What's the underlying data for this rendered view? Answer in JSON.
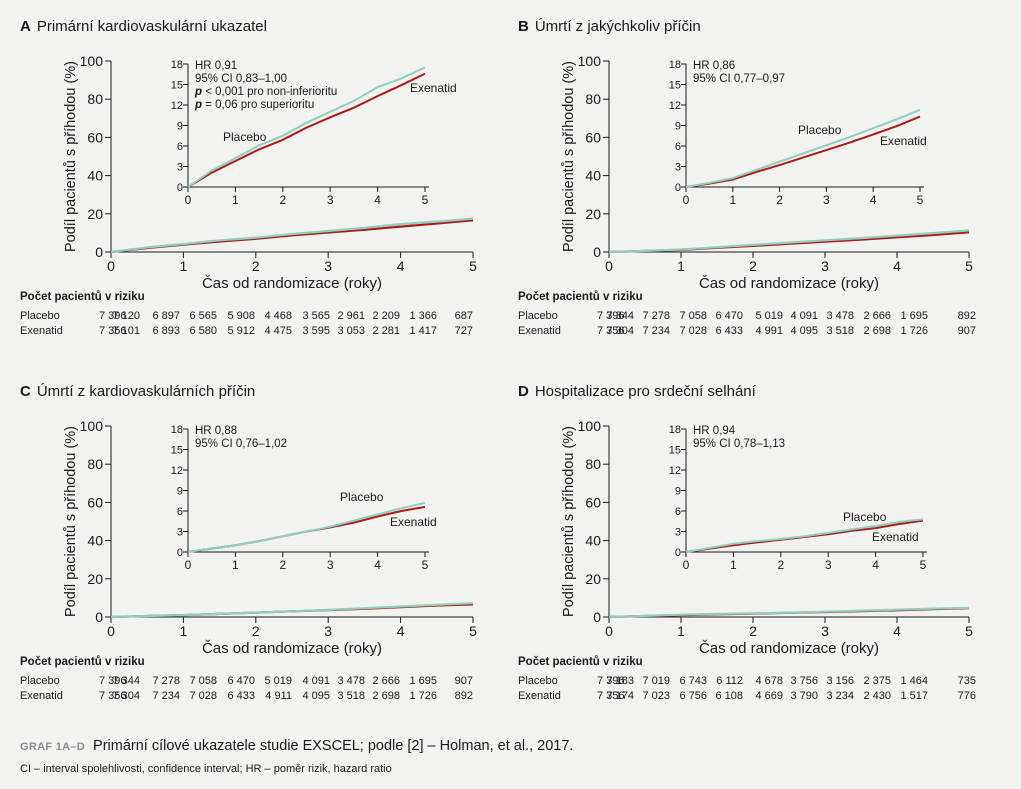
{
  "colors": {
    "placebo": "#8fcfc0",
    "exenatid": "#b01a14",
    "axis": "#1a1a1a",
    "background": "#f2f2f1"
  },
  "caption": {
    "tag": "GRAF 1A–D",
    "text": "Primární cílové ukazatele studie EXSCEL; podle [2] – Holman, et al., 2017.",
    "footnote": "CI – interval spolehlivosti, confidence interval; HR – poměr rizik, hazard ratio"
  },
  "chart_data": [
    {
      "type": "line",
      "letter": "A",
      "title": "Primární kardiovaskulární ukazatel",
      "xlabel": "Čas od randomizace (roky)",
      "ylabel": "Podíl pacientů s příhodou (%)",
      "xlim": [
        0,
        5
      ],
      "ylim": [
        0,
        100
      ],
      "xticks": [
        "0",
        "1",
        "2",
        "3",
        "4",
        "5"
      ],
      "yticks": [
        "0",
        "20",
        "40",
        "60",
        "80",
        "100"
      ],
      "series": [
        {
          "name": "Placebo",
          "x": [
            0,
            0.5,
            1,
            1.5,
            2,
            2.5,
            3,
            3.5,
            4,
            4.5,
            5
          ],
          "y": [
            0,
            2.4,
            4.2,
            6.1,
            7.5,
            9.4,
            11,
            12.6,
            14.6,
            15.9,
            17.5
          ]
        },
        {
          "name": "Exenatid",
          "x": [
            0,
            0.5,
            1,
            1.5,
            2,
            2.5,
            3,
            3.5,
            4,
            4.5,
            5
          ],
          "y": [
            0,
            2.1,
            3.8,
            5.5,
            6.9,
            8.7,
            10.2,
            11.6,
            13.3,
            14.9,
            16.6
          ]
        }
      ],
      "inset": {
        "xlim": [
          0,
          5
        ],
        "ylim": [
          0,
          18
        ],
        "xticks": [
          "0",
          "1",
          "2",
          "3",
          "4",
          "5"
        ],
        "yticks": [
          "0",
          "3",
          "6",
          "9",
          "12",
          "15",
          "18"
        ],
        "annotations": [
          {
            "text": "HR 0,91"
          },
          {
            "text": "95% CI 0,83–1,00"
          },
          {
            "bold": "p",
            "text": " < 0,001 pro non-inferioritu"
          },
          {
            "bold": "p",
            "text": " = 0,06 pro superioritu"
          }
        ],
        "series": [
          {
            "name": "Placebo",
            "x": [
              0,
              0.5,
              1,
              1.5,
              2,
              2.5,
              3,
              3.5,
              4,
              4.5,
              5
            ],
            "y": [
              0,
              2.4,
              4.2,
              6.1,
              7.5,
              9.4,
              11,
              12.6,
              14.6,
              15.9,
              17.5
            ]
          },
          {
            "name": "Exenatid",
            "x": [
              0,
              0.5,
              1,
              1.5,
              2,
              2.5,
              3,
              3.5,
              4,
              4.5,
              5
            ],
            "y": [
              0,
              2.1,
              3.8,
              5.5,
              6.9,
              8.7,
              10.2,
              11.6,
              13.3,
              14.9,
              16.6
            ]
          }
        ]
      },
      "risk_table": {
        "title": "Počet pacientů v riziku",
        "rows": [
          {
            "label": "Placebo",
            "values": [
              "7 396",
              "7 120",
              "6 897",
              "6 565",
              "5 908",
              "4 468",
              "3 565",
              "2 961",
              "2 209",
              "1 366",
              "687"
            ]
          },
          {
            "label": "Exenatid",
            "values": [
              "7 356",
              "7 101",
              "6 893",
              "6 580",
              "5 912",
              "4 475",
              "3 595",
              "3 053",
              "2 281",
              "1 417",
              "727"
            ]
          }
        ]
      }
    },
    {
      "type": "line",
      "letter": "B",
      "title": "Úmrtí z jakýchkoliv příčin",
      "xlabel": "Čas od randomizace (roky)",
      "ylabel": "Podíl pacientů s příhodou (%)",
      "xlim": [
        0,
        5
      ],
      "ylim": [
        0,
        100
      ],
      "xticks": [
        "0",
        "1",
        "2",
        "3",
        "4",
        "5"
      ],
      "yticks": [
        "0",
        "20",
        "40",
        "60",
        "80",
        "100"
      ],
      "series": [
        {
          "name": "Placebo",
          "x": [
            0,
            0.5,
            1,
            1.5,
            2,
            2.5,
            3,
            3.5,
            4,
            4.5,
            5
          ],
          "y": [
            0,
            0.6,
            1.3,
            2.5,
            3.7,
            4.9,
            6.1,
            7.3,
            8.6,
            9.9,
            11.3
          ]
        },
        {
          "name": "Exenatid",
          "x": [
            0,
            0.5,
            1,
            1.5,
            2,
            2.5,
            3,
            3.5,
            4,
            4.5,
            5
          ],
          "y": [
            0,
            0.5,
            1.1,
            2.2,
            3.2,
            4.3,
            5.4,
            6.5,
            7.7,
            8.9,
            10.3
          ]
        }
      ],
      "inset": {
        "xlim": [
          0,
          5
        ],
        "ylim": [
          0,
          18
        ],
        "xticks": [
          "0",
          "1",
          "2",
          "3",
          "4",
          "5"
        ],
        "yticks": [
          "0",
          "3",
          "6",
          "9",
          "12",
          "15",
          "18"
        ],
        "annotations": [
          {
            "text": "HR 0,86"
          },
          {
            "text": "95% CI 0,77–0,97"
          }
        ],
        "series": [
          {
            "name": "Placebo",
            "x": [
              0,
              0.5,
              1,
              1.5,
              2,
              2.5,
              3,
              3.5,
              4,
              4.5,
              5
            ],
            "y": [
              0,
              0.6,
              1.3,
              2.5,
              3.7,
              4.9,
              6.1,
              7.3,
              8.6,
              9.9,
              11.3
            ]
          },
          {
            "name": "Exenatid",
            "x": [
              0,
              0.5,
              1,
              1.5,
              2,
              2.5,
              3,
              3.5,
              4,
              4.5,
              5
            ],
            "y": [
              0,
              0.5,
              1.1,
              2.2,
              3.2,
              4.3,
              5.4,
              6.5,
              7.7,
              8.9,
              10.3
            ]
          }
        ]
      },
      "risk_table": {
        "title": "Počet pacientů v riziku",
        "rows": [
          {
            "label": "Placebo",
            "values": [
              "7 396",
              "7 344",
              "7 278",
              "7 058",
              "6 470",
              "5 019",
              "4 091",
              "3 478",
              "2 666",
              "1 695",
              "892"
            ]
          },
          {
            "label": "Exenatid",
            "values": [
              "7 356",
              "7 304",
              "7 234",
              "7 028",
              "6 433",
              "4 991",
              "4 095",
              "3 518",
              "2 698",
              "1 726",
              "907"
            ]
          }
        ]
      }
    },
    {
      "type": "line",
      "letter": "C",
      "title": "Úmrtí z kardiovaskulárních příčin",
      "xlabel": "Čas od randomizace (roky)",
      "ylabel": "Podíl pacientů s příhodou (%)",
      "xlim": [
        0,
        5
      ],
      "ylim": [
        0,
        100
      ],
      "xticks": [
        "0",
        "1",
        "2",
        "3",
        "4",
        "5"
      ],
      "yticks": [
        "0",
        "20",
        "40",
        "60",
        "80",
        "100"
      ],
      "series": [
        {
          "name": "Placebo",
          "x": [
            0,
            0.5,
            1,
            1.5,
            2,
            2.5,
            3,
            3.5,
            4,
            4.5,
            5
          ],
          "y": [
            0,
            0.5,
            1.0,
            1.6,
            2.3,
            3.0,
            3.7,
            4.6,
            5.5,
            6.4,
            7.2
          ]
        },
        {
          "name": "Exenatid",
          "x": [
            0,
            0.5,
            1,
            1.5,
            2,
            2.5,
            3,
            3.5,
            4,
            4.5,
            5
          ],
          "y": [
            0,
            0.5,
            1.0,
            1.6,
            2.3,
            3.0,
            3.6,
            4.3,
            5.2,
            6.0,
            6.6
          ]
        }
      ],
      "inset": {
        "xlim": [
          0,
          5
        ],
        "ylim": [
          0,
          18
        ],
        "xticks": [
          "0",
          "1",
          "2",
          "3",
          "4",
          "5"
        ],
        "yticks": [
          "0",
          "3",
          "6",
          "9",
          "12",
          "15",
          "18"
        ],
        "annotations": [
          {
            "text": "HR 0,88"
          },
          {
            "text": "95% CI 0,76–1,02"
          }
        ],
        "series": [
          {
            "name": "Placebo",
            "x": [
              0,
              0.5,
              1,
              1.5,
              2,
              2.5,
              3,
              3.5,
              4,
              4.5,
              5
            ],
            "y": [
              0,
              0.5,
              1.0,
              1.6,
              2.3,
              3.0,
              3.7,
              4.6,
              5.5,
              6.4,
              7.2
            ]
          },
          {
            "name": "Exenatid",
            "x": [
              0,
              0.5,
              1,
              1.5,
              2,
              2.5,
              3,
              3.5,
              4,
              4.5,
              5
            ],
            "y": [
              0,
              0.5,
              1.0,
              1.6,
              2.3,
              3.0,
              3.6,
              4.3,
              5.2,
              6.0,
              6.6
            ]
          }
        ]
      },
      "risk_table": {
        "title": "Počet pacientů v riziku",
        "rows": [
          {
            "label": "Placebo",
            "values": [
              "7 396",
              "7 344",
              "7 278",
              "7 058",
              "6 470",
              "5 019",
              "4 091",
              "3 478",
              "2 666",
              "1 695",
              "907"
            ]
          },
          {
            "label": "Exenatid",
            "values": [
              "7 356",
              "7 304",
              "7 234",
              "7 028",
              "6 433",
              "4 911",
              "4 095",
              "3 518",
              "2 698",
              "1 726",
              "892"
            ]
          }
        ]
      }
    },
    {
      "type": "line",
      "letter": "D",
      "title": "Hospitalizace pro srdeční selhání",
      "xlabel": "Čas od randomizace (roky)",
      "ylabel": "Podíl pacientů s příhodou (%)",
      "xlim": [
        0,
        5
      ],
      "ylim": [
        0,
        100
      ],
      "xticks": [
        "0",
        "1",
        "2",
        "3",
        "4",
        "5"
      ],
      "yticks": [
        "0",
        "20",
        "40",
        "60",
        "80",
        "100"
      ],
      "series": [
        {
          "name": "Placebo",
          "x": [
            0,
            0.5,
            1,
            1.5,
            2,
            2.5,
            3,
            3.5,
            4,
            4.5,
            5
          ],
          "y": [
            0,
            0.6,
            1.2,
            1.6,
            1.9,
            2.3,
            2.8,
            3.3,
            3.8,
            4.4,
            4.8
          ]
        },
        {
          "name": "Exenatid",
          "x": [
            0,
            0.5,
            1,
            1.5,
            2,
            2.5,
            3,
            3.5,
            4,
            4.5,
            5
          ],
          "y": [
            0,
            0.5,
            1.0,
            1.4,
            1.8,
            2.2,
            2.6,
            3.1,
            3.5,
            4.1,
            4.6
          ]
        }
      ],
      "inset": {
        "xlim": [
          0,
          5
        ],
        "ylim": [
          0,
          18
        ],
        "xticks": [
          "0",
          "1",
          "2",
          "3",
          "4",
          "5"
        ],
        "yticks": [
          "0",
          "3",
          "6",
          "9",
          "12",
          "15",
          "18"
        ],
        "annotations": [
          {
            "text": "HR 0,94"
          },
          {
            "text": "95% CI 0,78–1,13"
          }
        ],
        "series": [
          {
            "name": "Placebo",
            "x": [
              0,
              0.5,
              1,
              1.5,
              2,
              2.5,
              3,
              3.5,
              4,
              4.5,
              5
            ],
            "y": [
              0,
              0.6,
              1.2,
              1.6,
              1.9,
              2.3,
              2.8,
              3.3,
              3.8,
              4.4,
              4.8
            ]
          },
          {
            "name": "Exenatid",
            "x": [
              0,
              0.5,
              1,
              1.5,
              2,
              2.5,
              3,
              3.5,
              4,
              4.5,
              5
            ],
            "y": [
              0,
              0.5,
              1.0,
              1.4,
              1.8,
              2.2,
              2.6,
              3.1,
              3.5,
              4.1,
              4.6
            ]
          }
        ]
      },
      "risk_table": {
        "title": "Počet pacientů v riziku",
        "rows": [
          {
            "label": "Placebo",
            "values": [
              "7 396",
              "7 183",
              "7 019",
              "6 743",
              "6 112",
              "4 678",
              "3 756",
              "3 156",
              "2 375",
              "1 464",
              "735"
            ]
          },
          {
            "label": "Exenatid",
            "values": [
              "7 356",
              "7 174",
              "7 023",
              "6 756",
              "6 108",
              "4 669",
              "3 790",
              "3 234",
              "2 430",
              "1 517",
              "776"
            ]
          }
        ]
      }
    }
  ]
}
